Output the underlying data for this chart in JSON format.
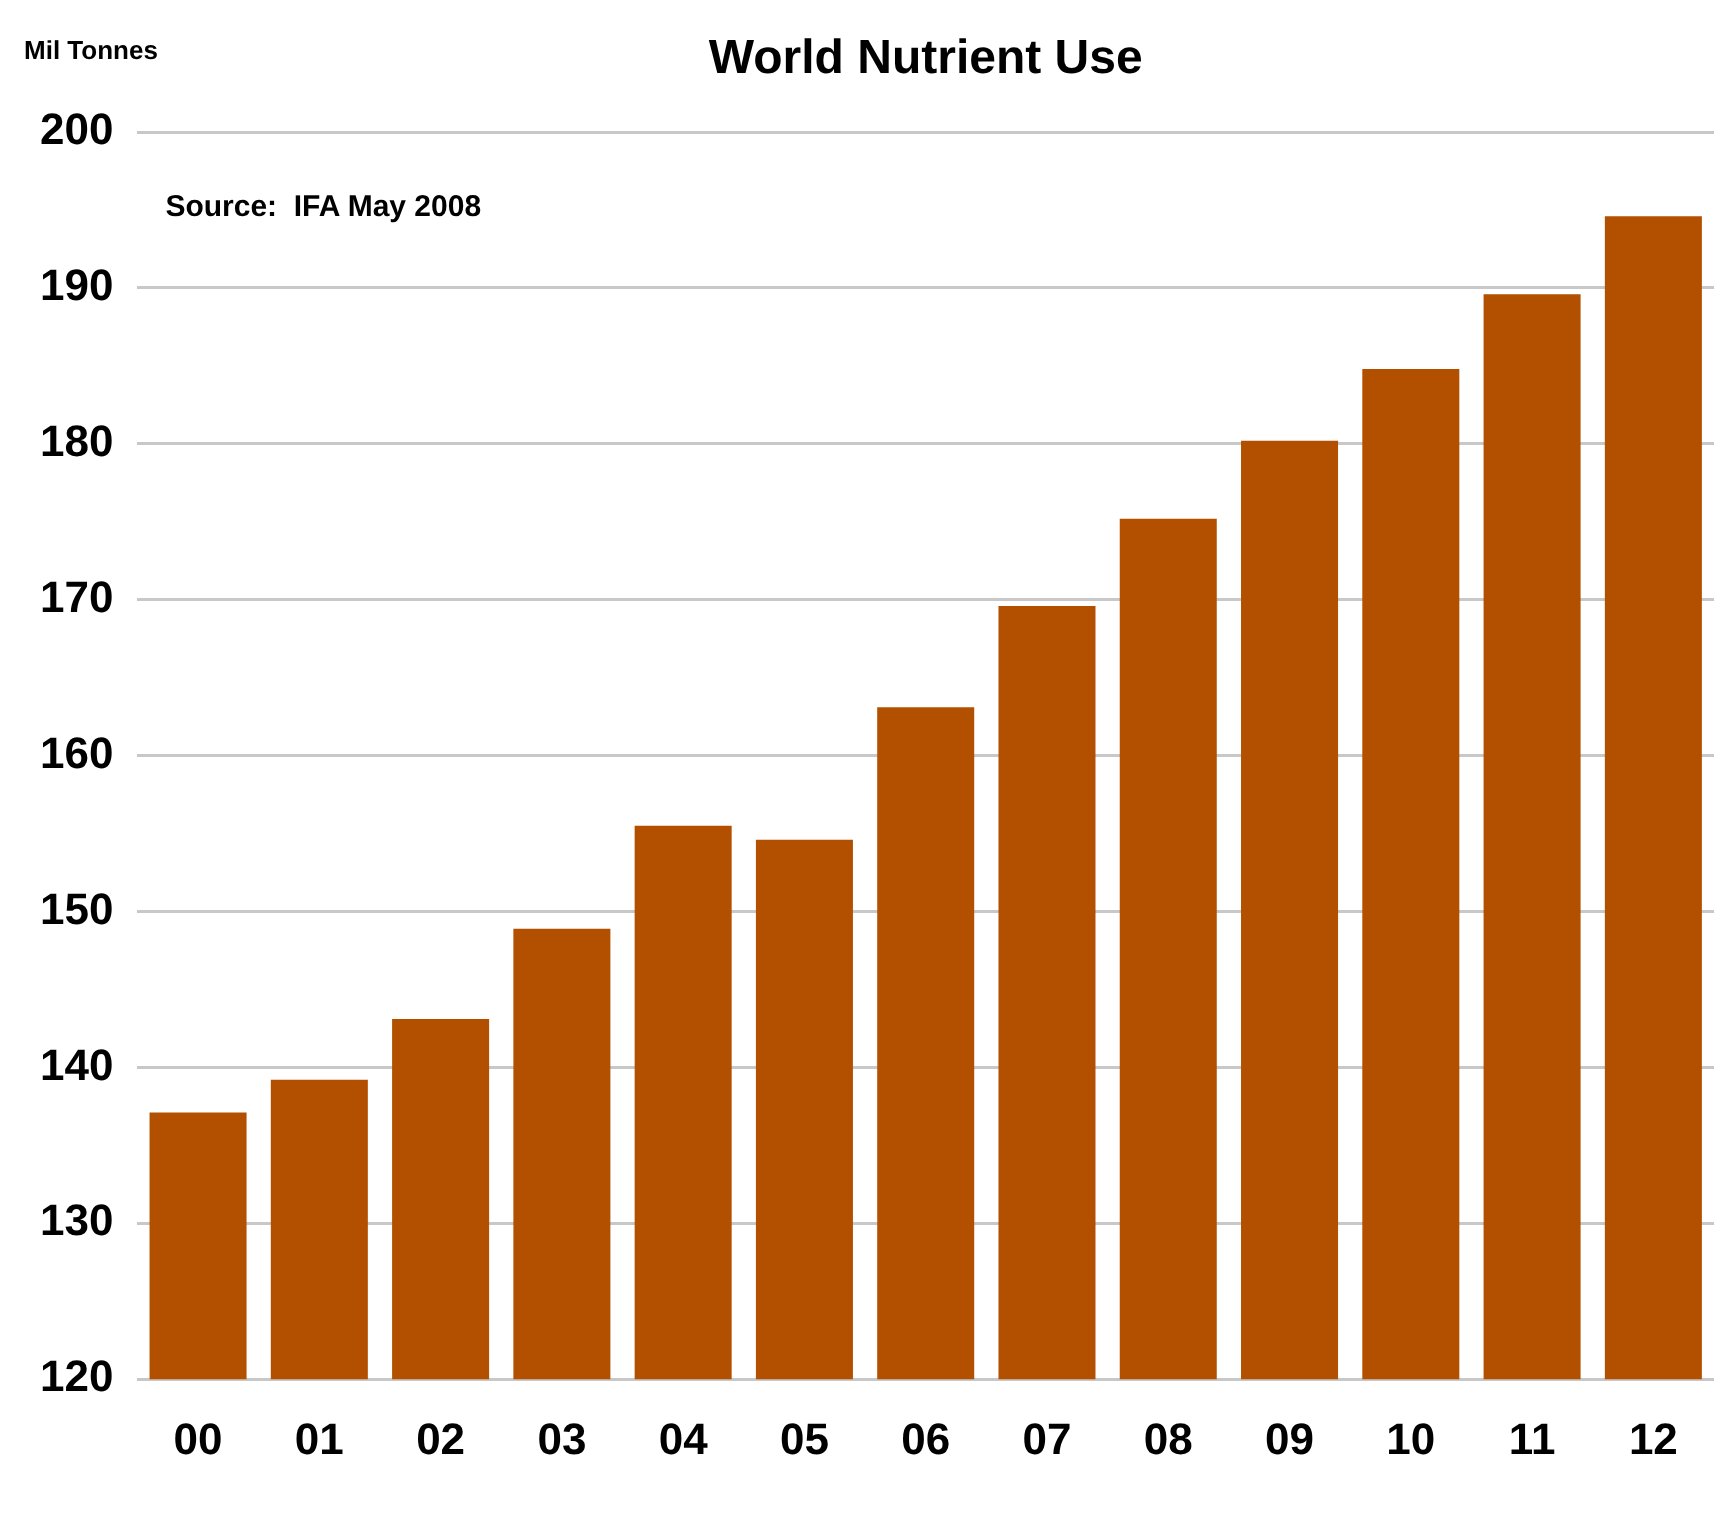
{
  "chart_data": {
    "type": "bar",
    "title": "World Nutrient Use",
    "ylabel": "Mil Tonnes",
    "annotations": [
      "Source:  IFA May 2008"
    ],
    "categories": [
      "00",
      "01",
      "02",
      "03",
      "04",
      "05",
      "06",
      "07",
      "08",
      "09",
      "10",
      "11",
      "12"
    ],
    "values": [
      137.1,
      139.2,
      143.1,
      148.9,
      155.5,
      154.6,
      163.1,
      169.6,
      175.2,
      180.2,
      184.8,
      189.6,
      194.6
    ],
    "color": "#b35000",
    "ylim": [
      120,
      200
    ],
    "yticks": [
      120,
      130,
      140,
      150,
      160,
      170,
      180,
      190,
      200
    ],
    "grid": "y"
  }
}
